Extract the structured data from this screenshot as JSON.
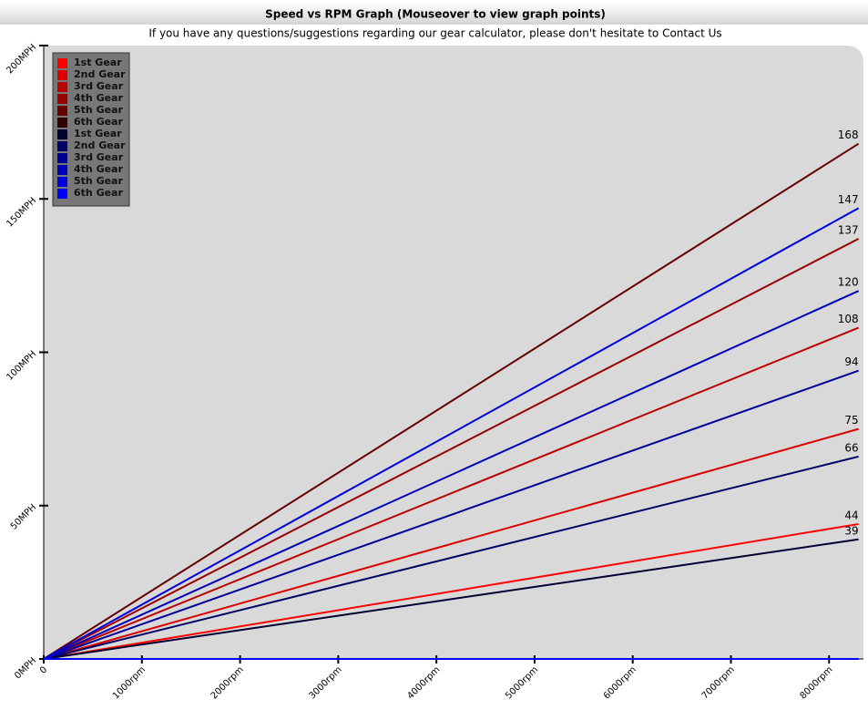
{
  "chart_data": {
    "type": "line",
    "title": "Speed vs RPM Graph (Mouseover to view graph points)",
    "subtitle": "If you have any questions/suggestions regarding our gear calculator, please don't hesitate to Contact Us",
    "x": [
      0,
      8300
    ],
    "xlim": [
      0,
      8350
    ],
    "xticks": [
      0,
      {
        "value": 1000,
        "label": "1000rpm"
      },
      {
        "value": 2000,
        "label": "2000rpm"
      },
      {
        "value": 3000,
        "label": "3000rpm"
      },
      {
        "value": 4000,
        "label": "4000rpm"
      },
      {
        "value": 5000,
        "label": "5000rpm"
      },
      {
        "value": 6000,
        "label": "6000rpm"
      },
      {
        "value": 7000,
        "label": "7000rpm"
      },
      {
        "value": 8000,
        "label": "8000rpm"
      }
    ],
    "ylim": [
      0,
      200
    ],
    "yticks": [
      {
        "value": 0,
        "label": "0MPH"
      },
      {
        "value": 50,
        "label": "50MPH"
      },
      {
        "value": 100,
        "label": "100MPH"
      },
      {
        "value": 150,
        "label": "150MPH"
      },
      {
        "value": 200,
        "label": "200MPH"
      }
    ],
    "series": [
      {
        "name": "1st Gear",
        "color": "#ff0000",
        "values": [
          0,
          44
        ]
      },
      {
        "name": "2nd Gear",
        "color": "#dd0000",
        "values": [
          0,
          75
        ]
      },
      {
        "name": "3rd Gear",
        "color": "#bb0000",
        "values": [
          0,
          108
        ]
      },
      {
        "name": "4th Gear",
        "color": "#990000",
        "values": [
          0,
          137
        ]
      },
      {
        "name": "5th Gear",
        "color": "#660000",
        "values": [
          0,
          168
        ]
      },
      {
        "name": "6th Gear",
        "color": "#330000",
        "values": [
          0,
          0
        ]
      },
      {
        "name": "1st Gear",
        "color": "#000033",
        "values": [
          0,
          39
        ]
      },
      {
        "name": "2nd Gear",
        "color": "#000066",
        "values": [
          0,
          66
        ]
      },
      {
        "name": "3rd Gear",
        "color": "#000099",
        "values": [
          0,
          94
        ]
      },
      {
        "name": "4th Gear",
        "color": "#0000bb",
        "values": [
          0,
          120
        ]
      },
      {
        "name": "5th Gear",
        "color": "#0000dd",
        "values": [
          0,
          147
        ]
      },
      {
        "name": "6th Gear",
        "color": "#0000ff",
        "values": [
          0,
          0
        ]
      }
    ]
  }
}
